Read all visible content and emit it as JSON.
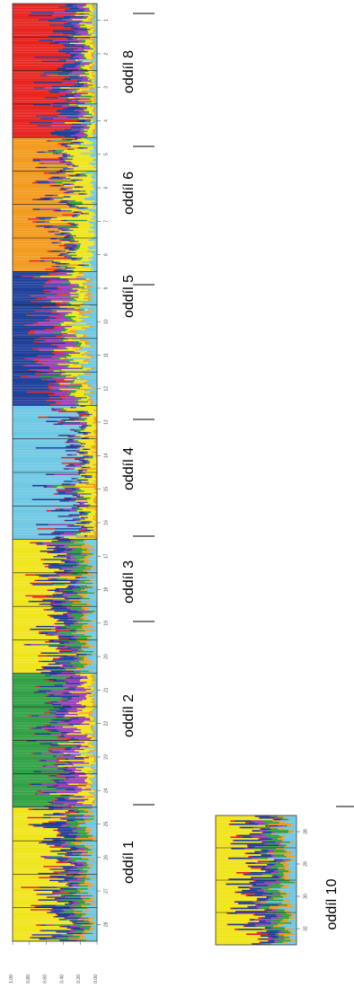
{
  "chart_data": {
    "type": "stacked-bar",
    "orientation": "rotated",
    "y_axis": {
      "ticks": [
        "1.00",
        "0.80",
        "0.60",
        "0.40",
        "0.20",
        "0.00"
      ],
      "range": [
        0,
        1
      ]
    },
    "series_colors": [
      "#e8231f",
      "#1d3f9a",
      "#9b3fb8",
      "#2fa043",
      "#f0e51a",
      "#f29a1d",
      "#6ec8e4"
    ],
    "panels": [
      {
        "name": "main",
        "populations": [
          {
            "id": "1",
            "dominant": "red",
            "cluster": "oddíl 1"
          },
          {
            "id": "2",
            "dominant": "red",
            "cluster": "oddíl 1"
          },
          {
            "id": "3",
            "dominant": "red",
            "cluster": "oddíl 1"
          },
          {
            "id": "4",
            "dominant": "red",
            "cluster": "oddíl 1"
          },
          {
            "id": "5",
            "dominant": "orange",
            "cluster": "oddíl 2"
          },
          {
            "id": "6",
            "dominant": "orange",
            "cluster": "oddíl 2"
          },
          {
            "id": "7",
            "dominant": "orange",
            "cluster": "oddíl 2"
          },
          {
            "id": "8",
            "dominant": "orange",
            "cluster": "oddíl 2"
          },
          {
            "id": "9",
            "dominant": "blue",
            "cluster": "oddíl 3"
          },
          {
            "id": "10",
            "dominant": "blue",
            "cluster": "oddíl 3"
          },
          {
            "id": "11",
            "dominant": "blue",
            "cluster": "oddíl 3"
          },
          {
            "id": "12",
            "dominant": "blue",
            "cluster": "oddíl 3"
          },
          {
            "id": "13",
            "dominant": "cyan",
            "cluster": "oddíl 4"
          },
          {
            "id": "14",
            "dominant": "cyan",
            "cluster": "oddíl 4"
          },
          {
            "id": "15",
            "dominant": "cyan",
            "cluster": "oddíl 4"
          },
          {
            "id": "16",
            "dominant": "cyan",
            "cluster": "oddíl 4"
          },
          {
            "id": "17",
            "dominant": "yellow",
            "cluster": "oddíl 5"
          },
          {
            "id": "18",
            "dominant": "yellow",
            "cluster": "oddíl 5"
          },
          {
            "id": "19",
            "dominant": "yellow",
            "cluster": "oddíl 5"
          },
          {
            "id": "20",
            "dominant": "yellow",
            "cluster": "oddíl 5"
          },
          {
            "id": "21",
            "dominant": "green",
            "cluster": "oddíl 6"
          },
          {
            "id": "22",
            "dominant": "green",
            "cluster": "oddíl 6"
          },
          {
            "id": "23",
            "dominant": "green",
            "cluster": "oddíl 6"
          },
          {
            "id": "24",
            "dominant": "green",
            "cluster": "oddíl 6"
          },
          {
            "id": "25",
            "dominant": "yellow",
            "cluster": "oddíl 8"
          },
          {
            "id": "26",
            "dominant": "yellow",
            "cluster": "oddíl 8"
          },
          {
            "id": "27",
            "dominant": "yellow",
            "cluster": "oddíl 8"
          },
          {
            "id": "28",
            "dominant": "yellow",
            "cluster": "oddíl 8"
          }
        ]
      },
      {
        "name": "secondary",
        "populations": [
          {
            "id": "28",
            "dominant": "yellow",
            "cluster": "oddíl 10"
          },
          {
            "id": "29",
            "dominant": "yellow",
            "cluster": "oddíl 10"
          },
          {
            "id": "30",
            "dominant": "yellow",
            "cluster": "oddíl 10"
          },
          {
            "id": "32",
            "dominant": "yellow",
            "cluster": "oddíl 10"
          }
        ]
      }
    ],
    "cluster_labels": [
      "oddíl 1",
      "oddíl 2",
      "oddíl 3",
      "oddíl 4",
      "oddíl 5",
      "oddíl 6",
      "oddíl 8",
      "oddíl 10"
    ]
  }
}
